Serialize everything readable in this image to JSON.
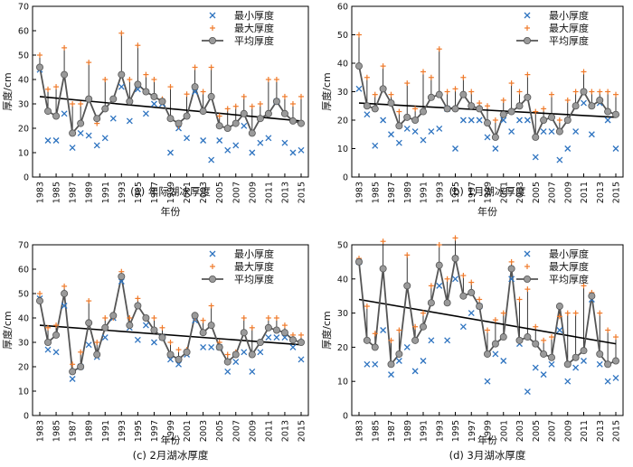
{
  "legend_labels": {
    "min": "最小厚度",
    "max": "最大厚度",
    "mean": "平均厚度"
  },
  "colors": {
    "min": "#2f74c0",
    "max": "#f07a2a",
    "mean_line": "#555555",
    "mean_marker": "#9a9a9a",
    "trend": "#000000",
    "spike": "#222222"
  },
  "chart_data": [
    {
      "type": "line",
      "caption": "(a) 年际湖冰厚度",
      "xlabel": "年份",
      "ylabel": "厚度/cm",
      "xlim": [
        1983,
        2015
      ],
      "ylim": [
        0,
        70
      ],
      "yticks": [
        0,
        10,
        20,
        30,
        40,
        50,
        60,
        70
      ],
      "xticks": [
        1983,
        1985,
        1987,
        1989,
        1991,
        1993,
        1995,
        1997,
        1999,
        2001,
        2003,
        2005,
        2007,
        2009,
        2011,
        2013,
        2015
      ],
      "legend_position": "top-right",
      "x": [
        1983,
        1984,
        1985,
        1986,
        1987,
        1988,
        1989,
        1990,
        1991,
        1992,
        1993,
        1994,
        1995,
        1996,
        1997,
        1998,
        1999,
        2000,
        2001,
        2002,
        2003,
        2004,
        2005,
        2006,
        2007,
        2008,
        2009,
        2010,
        2011,
        2012,
        2013,
        2014,
        2015
      ],
      "series": [
        {
          "name": "最小厚度",
          "kind": "min",
          "values": [
            44,
            15,
            15,
            26,
            12,
            18,
            17,
            13,
            16,
            24,
            37,
            23,
            36,
            26,
            30,
            30,
            10,
            20,
            16,
            35,
            15,
            7,
            15,
            11,
            13,
            21,
            10,
            14,
            16,
            31,
            14,
            10,
            11
          ]
        },
        {
          "name": "最大厚度",
          "kind": "max",
          "values": [
            50,
            36,
            37,
            53,
            30,
            30,
            47,
            22,
            40,
            32,
            59,
            40,
            54,
            42,
            40,
            32,
            37,
            21,
            34,
            45,
            35,
            45,
            25,
            28,
            29,
            33,
            29,
            30,
            40,
            40,
            33,
            30,
            33
          ]
        },
        {
          "name": "平均厚度",
          "kind": "mean",
          "values": [
            45,
            27,
            25,
            42,
            18,
            22,
            32,
            24,
            28,
            32,
            42,
            31,
            38,
            35,
            33,
            31,
            24,
            22,
            25,
            37,
            27,
            33,
            21,
            20,
            22,
            26,
            18,
            24,
            26,
            31,
            26,
            23,
            22
          ]
        }
      ],
      "trend": [
        33,
        23
      ]
    },
    {
      "type": "line",
      "caption": "(b) 1月湖冰厚度",
      "xlabel": "年份",
      "ylabel": "厚度/cm",
      "xlim": [
        1983,
        2015
      ],
      "ylim": [
        0,
        60
      ],
      "yticks": [
        0,
        10,
        20,
        30,
        40,
        50,
        60
      ],
      "xticks": [
        1983,
        1985,
        1987,
        1989,
        1991,
        1993,
        1995,
        1997,
        1999,
        2001,
        2003,
        2005,
        2007,
        2009,
        2011,
        2013,
        2015
      ],
      "legend_position": "top-right",
      "x": [
        1983,
        1984,
        1985,
        1986,
        1987,
        1988,
        1989,
        1990,
        1991,
        1992,
        1993,
        1994,
        1995,
        1996,
        1997,
        1998,
        1999,
        2000,
        2001,
        2002,
        2003,
        2004,
        2005,
        2006,
        2007,
        2008,
        2009,
        2010,
        2011,
        2012,
        2013,
        2014,
        2015
      ],
      "series": [
        {
          "name": "最小厚度",
          "kind": "min",
          "values": [
            31,
            22,
            11,
            20,
            15,
            12,
            17,
            16,
            13,
            16,
            17,
            24,
            10,
            20,
            20,
            20,
            14,
            10,
            20,
            16,
            20,
            20,
            7,
            16,
            16,
            6,
            10,
            16,
            26,
            15,
            26,
            20,
            10
          ]
        },
        {
          "name": "最大厚度",
          "kind": "max",
          "values": [
            50,
            35,
            29,
            39,
            29,
            23,
            33,
            24,
            37,
            35,
            45,
            30,
            31,
            35,
            30,
            26,
            25,
            20,
            27,
            33,
            30,
            36,
            23,
            24,
            29,
            20,
            27,
            30,
            37,
            30,
            30,
            30,
            29
          ]
        },
        {
          "name": "平均厚度",
          "kind": "mean",
          "values": [
            39,
            25,
            24,
            31,
            26,
            18,
            21,
            20,
            23,
            28,
            29,
            24,
            24,
            29,
            25,
            24,
            19,
            14,
            22,
            23,
            25,
            28,
            14,
            20,
            21,
            16,
            20,
            25,
            30,
            25,
            27,
            23,
            22
          ]
        }
      ],
      "trend": [
        26,
        21
      ]
    },
    {
      "type": "line",
      "caption": "(c) 2月湖冰厚度",
      "xlabel": "年份",
      "ylabel": "厚度/cm",
      "xlim": [
        1983,
        2015
      ],
      "ylim": [
        0,
        70
      ],
      "yticks": [
        0,
        10,
        20,
        30,
        40,
        50,
        60,
        70
      ],
      "xticks": [
        1983,
        1985,
        1987,
        1989,
        1991,
        1993,
        1995,
        1997,
        1999,
        2001,
        2003,
        2005,
        2007,
        2009,
        2011,
        2013,
        2015
      ],
      "legend_position": "top-right",
      "x": [
        1983,
        1984,
        1985,
        1986,
        1987,
        1988,
        1989,
        1990,
        1991,
        1992,
        1993,
        1994,
        1995,
        1996,
        1997,
        1998,
        1999,
        2000,
        2001,
        2002,
        2003,
        2004,
        2005,
        2006,
        2007,
        2008,
        2009,
        2010,
        2011,
        2012,
        2013,
        2014,
        2015
      ],
      "series": [
        {
          "name": "最小厚度",
          "kind": "min",
          "values": [
            48,
            27,
            26,
            45,
            15,
            20,
            29,
            24,
            32,
            40,
            55,
            36,
            31,
            37,
            30,
            32,
            23,
            21,
            25,
            39,
            28,
            28,
            28,
            18,
            22,
            26,
            18,
            26,
            32,
            32,
            32,
            28,
            23
          ]
        },
        {
          "name": "最大厚度",
          "kind": "max",
          "values": [
            50,
            36,
            37,
            53,
            21,
            26,
            47,
            30,
            40,
            40,
            59,
            40,
            48,
            40,
            40,
            36,
            30,
            27,
            27,
            40,
            39,
            45,
            30,
            25,
            26,
            40,
            36,
            30,
            40,
            40,
            37,
            33,
            33
          ]
        },
        {
          "name": "平均厚度",
          "kind": "mean",
          "values": [
            47,
            30,
            33,
            50,
            18,
            20,
            38,
            25,
            36,
            41,
            57,
            37,
            45,
            40,
            35,
            32,
            25,
            23,
            26,
            41,
            34,
            37,
            28,
            22,
            25,
            34,
            25,
            30,
            36,
            35,
            34,
            31,
            30
          ]
        }
      ],
      "trend": [
        37,
        29
      ]
    },
    {
      "type": "line",
      "caption": "(d) 3月湖冰厚度",
      "xlabel": "年份",
      "ylabel": "厚度/cm",
      "xlim": [
        1983,
        2015
      ],
      "ylim": [
        0,
        50
      ],
      "yticks": [
        0,
        10,
        20,
        30,
        40,
        50
      ],
      "xticks": [
        1983,
        1985,
        1987,
        1989,
        1991,
        1993,
        1995,
        1997,
        1999,
        2001,
        2003,
        2005,
        2007,
        2009,
        2011,
        2013,
        2015
      ],
      "legend_position": "top-right",
      "x": [
        1983,
        1984,
        1985,
        1986,
        1987,
        1988,
        1989,
        1990,
        1991,
        1992,
        1993,
        1994,
        1995,
        1996,
        1997,
        1998,
        1999,
        2000,
        2001,
        2002,
        2003,
        2004,
        2005,
        2006,
        2007,
        2008,
        2009,
        2010,
        2011,
        2012,
        2013,
        2014,
        2015
      ],
      "series": [
        {
          "name": "最小厚度",
          "kind": "min",
          "values": [
            45,
            15,
            15,
            25,
            12,
            16,
            20,
            13,
            16,
            22,
            38,
            22,
            40,
            26,
            30,
            32,
            10,
            18,
            16,
            40,
            21,
            7,
            14,
            12,
            15,
            25,
            10,
            14,
            16,
            34,
            15,
            10,
            11
          ]
        },
        {
          "name": "最大厚度",
          "kind": "max",
          "values": [
            46,
            32,
            24,
            51,
            22,
            25,
            47,
            26,
            30,
            38,
            50,
            40,
            52,
            41,
            39,
            34,
            25,
            28,
            30,
            45,
            34,
            37,
            26,
            22,
            23,
            29,
            30,
            30,
            38,
            36,
            30,
            25,
            23
          ]
        },
        {
          "name": "平均厚度",
          "kind": "mean",
          "values": [
            45,
            22,
            20,
            43,
            15,
            18,
            38,
            22,
            26,
            33,
            44,
            33,
            46,
            35,
            36,
            32,
            18,
            21,
            23,
            43,
            22,
            23,
            21,
            18,
            17,
            32,
            15,
            17,
            19,
            35,
            18,
            15,
            16
          ]
        }
      ],
      "trend": [
        34,
        21
      ]
    }
  ]
}
